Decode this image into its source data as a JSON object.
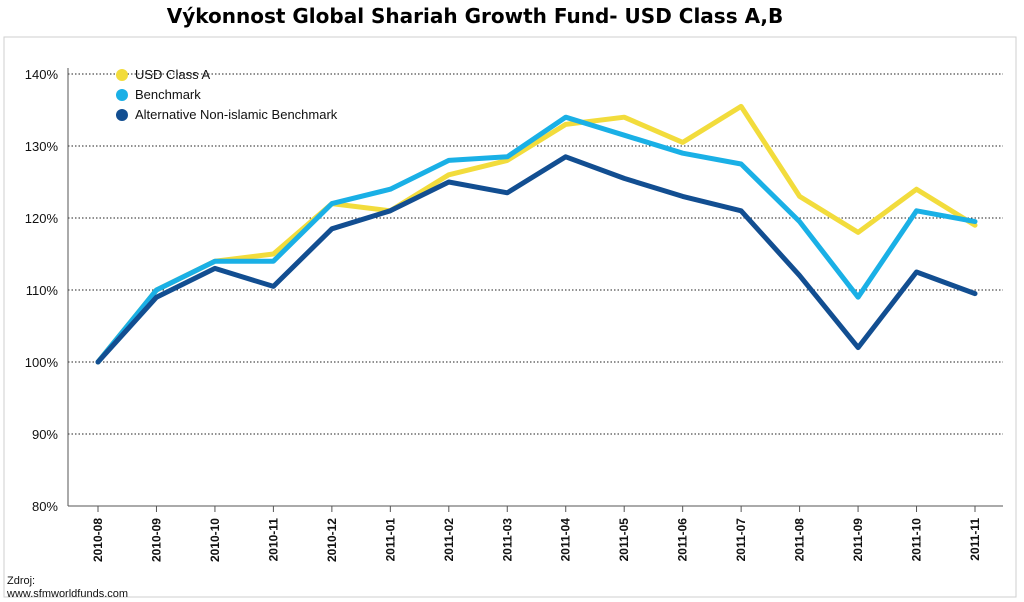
{
  "chart_data": {
    "type": "line",
    "title": "Výkonnost Global Shariah Growth Fund- USD Class A,B",
    "x": [
      "2010-08",
      "2010-09",
      "2010-10",
      "2010-11",
      "2010-12",
      "2011-01",
      "2011-02",
      "2011-03",
      "2011-04",
      "2011-05",
      "2011-06",
      "2011-07",
      "2011-08",
      "2011-09",
      "2011-10",
      "2011-11"
    ],
    "ylim": [
      80,
      140
    ],
    "yticks": [
      "140%",
      "130%",
      "120%",
      "110%",
      "100%",
      "90%",
      "80%"
    ],
    "grid": true,
    "legend_position": "top-left",
    "series": [
      {
        "name": "USD Class A",
        "color": "#f2dc3c",
        "values": [
          100,
          110,
          114,
          115,
          122,
          121,
          126,
          128,
          133,
          134,
          130.5,
          135.5,
          123,
          118,
          124,
          119
        ]
      },
      {
        "name": "Benchmark",
        "color": "#1ab0e6",
        "values": [
          100,
          110,
          114,
          114,
          122,
          124,
          128,
          128.5,
          134,
          131.5,
          129,
          127.5,
          119.5,
          109,
          121,
          119.5
        ]
      },
      {
        "name": "Alternative Non-islamic Benchmark",
        "color": "#124e91",
        "values": [
          100,
          109,
          113,
          110.5,
          118.5,
          121,
          125,
          123.5,
          128.5,
          125.5,
          123,
          121,
          112,
          102,
          112.5,
          109.5
        ]
      }
    ]
  },
  "source": {
    "label": "Zdroj:",
    "url": "www.sfmworldfunds.com"
  }
}
